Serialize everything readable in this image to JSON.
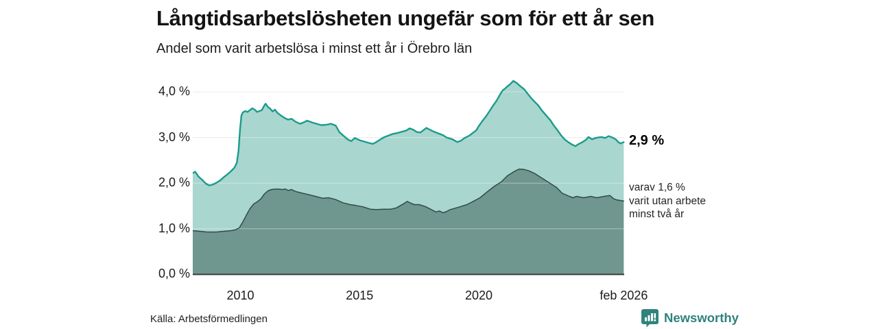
{
  "header": {
    "title": "Långtidsarbetslösheten ungefär som för ett år sen",
    "subtitle": "Andel som varit arbetslösa i minst ett år i Örebro län"
  },
  "chart_data": {
    "type": "area",
    "title": "Långtidsarbetslösheten ungefär som för ett år sen",
    "subtitle": "Andel som varit arbetslösa i minst ett år i Örebro län",
    "xlabel": "",
    "ylabel": "",
    "unit": "%",
    "grid": true,
    "x_domain": [
      2008.0,
      2026.1
    ],
    "ylim": [
      0,
      4.45
    ],
    "y_ticks": [
      {
        "label": "4,0 %",
        "value": 4
      },
      {
        "label": "3,0 %",
        "value": 3
      },
      {
        "label": "2,0 %",
        "value": 2
      },
      {
        "label": "1,0 %",
        "value": 1
      },
      {
        "label": "0,0 %",
        "value": 0
      }
    ],
    "x_ticks": [
      {
        "label": "2010",
        "value": 2010
      },
      {
        "label": "2015",
        "value": 2015
      },
      {
        "label": "2020",
        "value": 2020
      },
      {
        "label": "feb 2026",
        "value": 2026.083
      }
    ],
    "end_value_label": "2,9 %",
    "annotation_lines": [
      "varav 1,6 %",
      "varit utan arbete",
      "minst två år"
    ],
    "series": [
      {
        "name": "Andel arbetslösa minst ett år",
        "end_value": 2.9,
        "line_color": "#1b9b8b",
        "fill_color": "#a9d6cf",
        "line_width": 2.4,
        "points": [
          [
            2008.0,
            2.22
          ],
          [
            2008.1,
            2.25
          ],
          [
            2008.25,
            2.14
          ],
          [
            2008.4,
            2.07
          ],
          [
            2008.55,
            1.99
          ],
          [
            2008.7,
            1.95
          ],
          [
            2008.85,
            1.97
          ],
          [
            2009.0,
            2.01
          ],
          [
            2009.15,
            2.06
          ],
          [
            2009.3,
            2.13
          ],
          [
            2009.45,
            2.19
          ],
          [
            2009.6,
            2.26
          ],
          [
            2009.75,
            2.34
          ],
          [
            2009.85,
            2.45
          ],
          [
            2009.92,
            2.7
          ],
          [
            2009.98,
            3.15
          ],
          [
            2010.04,
            3.48
          ],
          [
            2010.1,
            3.55
          ],
          [
            2010.2,
            3.58
          ],
          [
            2010.3,
            3.56
          ],
          [
            2010.4,
            3.6
          ],
          [
            2010.5,
            3.64
          ],
          [
            2010.6,
            3.61
          ],
          [
            2010.7,
            3.56
          ],
          [
            2010.8,
            3.58
          ],
          [
            2010.9,
            3.6
          ],
          [
            2011.0,
            3.7
          ],
          [
            2011.06,
            3.74
          ],
          [
            2011.15,
            3.67
          ],
          [
            2011.25,
            3.63
          ],
          [
            2011.35,
            3.57
          ],
          [
            2011.45,
            3.61
          ],
          [
            2011.55,
            3.54
          ],
          [
            2011.7,
            3.48
          ],
          [
            2011.85,
            3.43
          ],
          [
            2012.0,
            3.39
          ],
          [
            2012.15,
            3.41
          ],
          [
            2012.3,
            3.35
          ],
          [
            2012.5,
            3.3
          ],
          [
            2012.65,
            3.33
          ],
          [
            2012.8,
            3.37
          ],
          [
            2013.0,
            3.33
          ],
          [
            2013.2,
            3.3
          ],
          [
            2013.4,
            3.27
          ],
          [
            2013.6,
            3.28
          ],
          [
            2013.8,
            3.3
          ],
          [
            2014.0,
            3.26
          ],
          [
            2014.15,
            3.12
          ],
          [
            2014.3,
            3.05
          ],
          [
            2014.5,
            2.96
          ],
          [
            2014.65,
            2.92
          ],
          [
            2014.8,
            2.99
          ],
          [
            2015.0,
            2.94
          ],
          [
            2015.2,
            2.91
          ],
          [
            2015.4,
            2.88
          ],
          [
            2015.55,
            2.86
          ],
          [
            2015.7,
            2.9
          ],
          [
            2015.85,
            2.95
          ],
          [
            2016.0,
            3.0
          ],
          [
            2016.2,
            3.04
          ],
          [
            2016.4,
            3.08
          ],
          [
            2016.6,
            3.1
          ],
          [
            2016.8,
            3.13
          ],
          [
            2016.95,
            3.15
          ],
          [
            2017.1,
            3.2
          ],
          [
            2017.25,
            3.17
          ],
          [
            2017.4,
            3.12
          ],
          [
            2017.55,
            3.11
          ],
          [
            2017.7,
            3.17
          ],
          [
            2017.8,
            3.21
          ],
          [
            2017.95,
            3.17
          ],
          [
            2018.1,
            3.13
          ],
          [
            2018.35,
            3.08
          ],
          [
            2018.5,
            3.05
          ],
          [
            2018.65,
            3.0
          ],
          [
            2018.9,
            2.96
          ],
          [
            2019.1,
            2.9
          ],
          [
            2019.25,
            2.93
          ],
          [
            2019.4,
            2.99
          ],
          [
            2019.6,
            3.04
          ],
          [
            2019.75,
            3.1
          ],
          [
            2019.9,
            3.16
          ],
          [
            2020.0,
            3.25
          ],
          [
            2020.15,
            3.36
          ],
          [
            2020.3,
            3.46
          ],
          [
            2020.45,
            3.58
          ],
          [
            2020.6,
            3.7
          ],
          [
            2020.75,
            3.81
          ],
          [
            2020.9,
            3.95
          ],
          [
            2021.0,
            4.03
          ],
          [
            2021.1,
            4.07
          ],
          [
            2021.2,
            4.12
          ],
          [
            2021.3,
            4.16
          ],
          [
            2021.45,
            4.24
          ],
          [
            2021.6,
            4.19
          ],
          [
            2021.75,
            4.12
          ],
          [
            2021.9,
            4.06
          ],
          [
            2022.05,
            3.96
          ],
          [
            2022.2,
            3.86
          ],
          [
            2022.35,
            3.78
          ],
          [
            2022.5,
            3.7
          ],
          [
            2022.65,
            3.59
          ],
          [
            2022.8,
            3.5
          ],
          [
            2023.0,
            3.38
          ],
          [
            2023.15,
            3.26
          ],
          [
            2023.3,
            3.16
          ],
          [
            2023.45,
            3.05
          ],
          [
            2023.6,
            2.96
          ],
          [
            2023.75,
            2.9
          ],
          [
            2023.9,
            2.85
          ],
          [
            2024.05,
            2.81
          ],
          [
            2024.2,
            2.86
          ],
          [
            2024.35,
            2.9
          ],
          [
            2024.5,
            2.95
          ],
          [
            2024.6,
            3.01
          ],
          [
            2024.75,
            2.96
          ],
          [
            2024.9,
            2.99
          ],
          [
            2025.0,
            3.0
          ],
          [
            2025.15,
            3.01
          ],
          [
            2025.3,
            2.99
          ],
          [
            2025.45,
            3.03
          ],
          [
            2025.6,
            3.0
          ],
          [
            2025.75,
            2.96
          ],
          [
            2025.85,
            2.9
          ],
          [
            2025.95,
            2.87
          ],
          [
            2026.08,
            2.9
          ]
        ]
      },
      {
        "name": "varav utan arbete minst två år",
        "end_value": 1.6,
        "line_color": "#2e4c46",
        "fill_color": "#70978f",
        "line_width": 1.5,
        "points": [
          [
            2008.0,
            0.96
          ],
          [
            2008.2,
            0.95
          ],
          [
            2008.4,
            0.94
          ],
          [
            2008.6,
            0.93
          ],
          [
            2008.8,
            0.93
          ],
          [
            2009.0,
            0.93
          ],
          [
            2009.2,
            0.94
          ],
          [
            2009.4,
            0.95
          ],
          [
            2009.6,
            0.96
          ],
          [
            2009.8,
            0.98
          ],
          [
            2009.95,
            1.02
          ],
          [
            2010.1,
            1.15
          ],
          [
            2010.25,
            1.3
          ],
          [
            2010.4,
            1.44
          ],
          [
            2010.55,
            1.54
          ],
          [
            2010.7,
            1.59
          ],
          [
            2010.85,
            1.65
          ],
          [
            2011.0,
            1.76
          ],
          [
            2011.15,
            1.83
          ],
          [
            2011.3,
            1.86
          ],
          [
            2011.45,
            1.87
          ],
          [
            2011.6,
            1.87
          ],
          [
            2011.75,
            1.86
          ],
          [
            2011.9,
            1.87
          ],
          [
            2012.0,
            1.84
          ],
          [
            2012.15,
            1.86
          ],
          [
            2012.3,
            1.82
          ],
          [
            2012.45,
            1.8
          ],
          [
            2012.6,
            1.78
          ],
          [
            2012.85,
            1.75
          ],
          [
            2013.15,
            1.71
          ],
          [
            2013.45,
            1.67
          ],
          [
            2013.7,
            1.68
          ],
          [
            2013.85,
            1.66
          ],
          [
            2014.0,
            1.64
          ],
          [
            2014.3,
            1.57
          ],
          [
            2014.6,
            1.53
          ],
          [
            2014.85,
            1.51
          ],
          [
            2015.15,
            1.48
          ],
          [
            2015.45,
            1.43
          ],
          [
            2015.7,
            1.42
          ],
          [
            2016.0,
            1.43
          ],
          [
            2016.3,
            1.43
          ],
          [
            2016.55,
            1.46
          ],
          [
            2016.85,
            1.55
          ],
          [
            2017.0,
            1.6
          ],
          [
            2017.15,
            1.56
          ],
          [
            2017.3,
            1.53
          ],
          [
            2017.5,
            1.53
          ],
          [
            2017.75,
            1.49
          ],
          [
            2018.05,
            1.41
          ],
          [
            2018.2,
            1.37
          ],
          [
            2018.35,
            1.39
          ],
          [
            2018.5,
            1.35
          ],
          [
            2018.65,
            1.38
          ],
          [
            2018.8,
            1.42
          ],
          [
            2019.0,
            1.45
          ],
          [
            2019.2,
            1.48
          ],
          [
            2019.5,
            1.53
          ],
          [
            2019.8,
            1.61
          ],
          [
            2020.05,
            1.68
          ],
          [
            2020.35,
            1.81
          ],
          [
            2020.65,
            1.93
          ],
          [
            2020.95,
            2.03
          ],
          [
            2021.2,
            2.16
          ],
          [
            2021.5,
            2.26
          ],
          [
            2021.7,
            2.31
          ],
          [
            2021.9,
            2.3
          ],
          [
            2022.1,
            2.27
          ],
          [
            2022.35,
            2.21
          ],
          [
            2022.65,
            2.11
          ],
          [
            2022.95,
            2.01
          ],
          [
            2023.25,
            1.91
          ],
          [
            2023.5,
            1.78
          ],
          [
            2023.8,
            1.71
          ],
          [
            2023.95,
            1.68
          ],
          [
            2024.1,
            1.71
          ],
          [
            2024.4,
            1.68
          ],
          [
            2024.7,
            1.71
          ],
          [
            2024.95,
            1.68
          ],
          [
            2025.25,
            1.71
          ],
          [
            2025.5,
            1.73
          ],
          [
            2025.65,
            1.66
          ],
          [
            2025.8,
            1.63
          ],
          [
            2026.08,
            1.61
          ]
        ]
      }
    ]
  },
  "footer": {
    "source": "Källa: Arbetsförmedlingen",
    "brand": "Newsworthy"
  },
  "colors": {
    "accent_teal": "#1b9b8b",
    "fill_light": "#a9d6cf",
    "fill_dark": "#70978f",
    "line_dark": "#2e4c46",
    "grid": "#dcdcdc",
    "axis": "#3b3b3b",
    "brand_teal": "#2f837c",
    "text": "#141414"
  }
}
